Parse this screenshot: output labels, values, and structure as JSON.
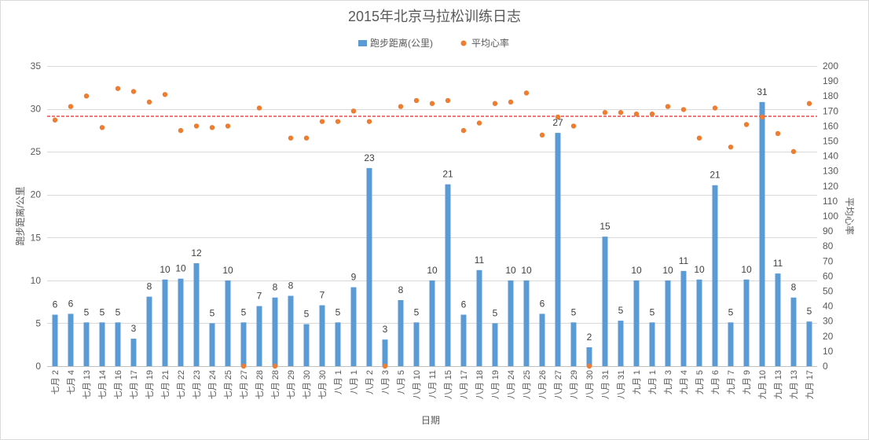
{
  "chart_data": {
    "type": "bar",
    "title": "2015年北京马拉松训练日志",
    "xlabel": "日期",
    "ylabel": "跑步距离/公里",
    "y2label": "平均心率",
    "ylim": [
      0,
      35
    ],
    "yticks": [
      0,
      5,
      10,
      15,
      20,
      25,
      30,
      35
    ],
    "y2lim": [
      0,
      200
    ],
    "y2ticks": [
      0,
      10,
      20,
      30,
      40,
      50,
      60,
      70,
      80,
      90,
      100,
      110,
      120,
      130,
      140,
      150,
      160,
      170,
      180,
      190,
      200
    ],
    "grid": true,
    "legend_position": "top",
    "categories": [
      "七月 2",
      "七月 4",
      "七月 13",
      "七月 14",
      "七月 16",
      "七月 17",
      "七月 19",
      "七月 21",
      "七月 22",
      "七月 23",
      "七月 24",
      "七月 25",
      "七月 27",
      "七月 28",
      "七月 28",
      "七月 29",
      "七月 30",
      "七月 30",
      "八月 1",
      "八月 1",
      "八月 2",
      "八月 3",
      "八月 5",
      "八月 10",
      "八月 11",
      "八月 15",
      "八月 17",
      "八月 18",
      "八月 19",
      "八月 24",
      "八月 25",
      "八月 26",
      "八月 27",
      "八月 29",
      "八月 30",
      "八月 31",
      "八月 31",
      "九月 1",
      "九月 1",
      "九月 3",
      "九月 4",
      "九月 5",
      "九月 6",
      "九月 7",
      "九月 9",
      "九月 10",
      "九月 13",
      "九月 13",
      "九月 17"
    ],
    "series": [
      {
        "name": "跑步距离(公里)",
        "type": "bar",
        "axis": "left",
        "color": "#5b9bd5",
        "values": [
          6.0,
          6.1,
          5.1,
          5.1,
          5.1,
          3.2,
          8.1,
          10.1,
          10.2,
          12.0,
          5.0,
          10.0,
          5.1,
          7.0,
          8.0,
          8.2,
          4.9,
          7.1,
          5.1,
          9.2,
          23.1,
          3.1,
          7.7,
          5.1,
          10.0,
          21.2,
          6.0,
          11.2,
          5.0,
          10.0,
          10.0,
          6.1,
          27.2,
          5.1,
          2.2,
          15.1,
          5.3,
          10.0,
          5.1,
          10.0,
          11.1,
          10.1,
          21.1,
          5.1,
          10.1,
          30.8,
          10.8,
          8.0,
          5.2
        ],
        "data_labels": [
          "6",
          "6",
          "5",
          "5",
          "5",
          "3",
          "8",
          "10",
          "10",
          "12",
          "5",
          "10",
          "5",
          "7",
          "8",
          "8",
          "5",
          "7",
          "5",
          "9",
          "23",
          "3",
          "8",
          "5",
          "10",
          "21",
          "6",
          "11",
          "5",
          "10",
          "10",
          "6",
          "27",
          "5",
          "2",
          "15",
          "5",
          "10",
          "5",
          "10",
          "11",
          "10",
          "21",
          "5",
          "10",
          "31",
          "11",
          "8",
          "5"
        ]
      },
      {
        "name": "平均心率",
        "type": "scatter",
        "axis": "right",
        "color": "#ed7d31",
        "values": [
          164,
          173,
          180,
          159,
          185,
          183,
          176,
          181,
          157,
          160,
          159,
          160,
          0,
          172,
          0,
          152,
          152,
          163,
          163,
          170,
          163,
          0,
          173,
          177,
          175,
          177,
          157,
          162,
          175,
          176,
          182,
          154,
          166,
          160,
          0,
          169,
          169,
          168,
          168,
          173,
          171,
          152,
          172,
          146,
          161,
          166,
          155,
          143,
          175
        ]
      }
    ],
    "reference_line": {
      "axis": "right",
      "value": 166.5,
      "color": "#e8262a",
      "style": "dashed"
    }
  }
}
